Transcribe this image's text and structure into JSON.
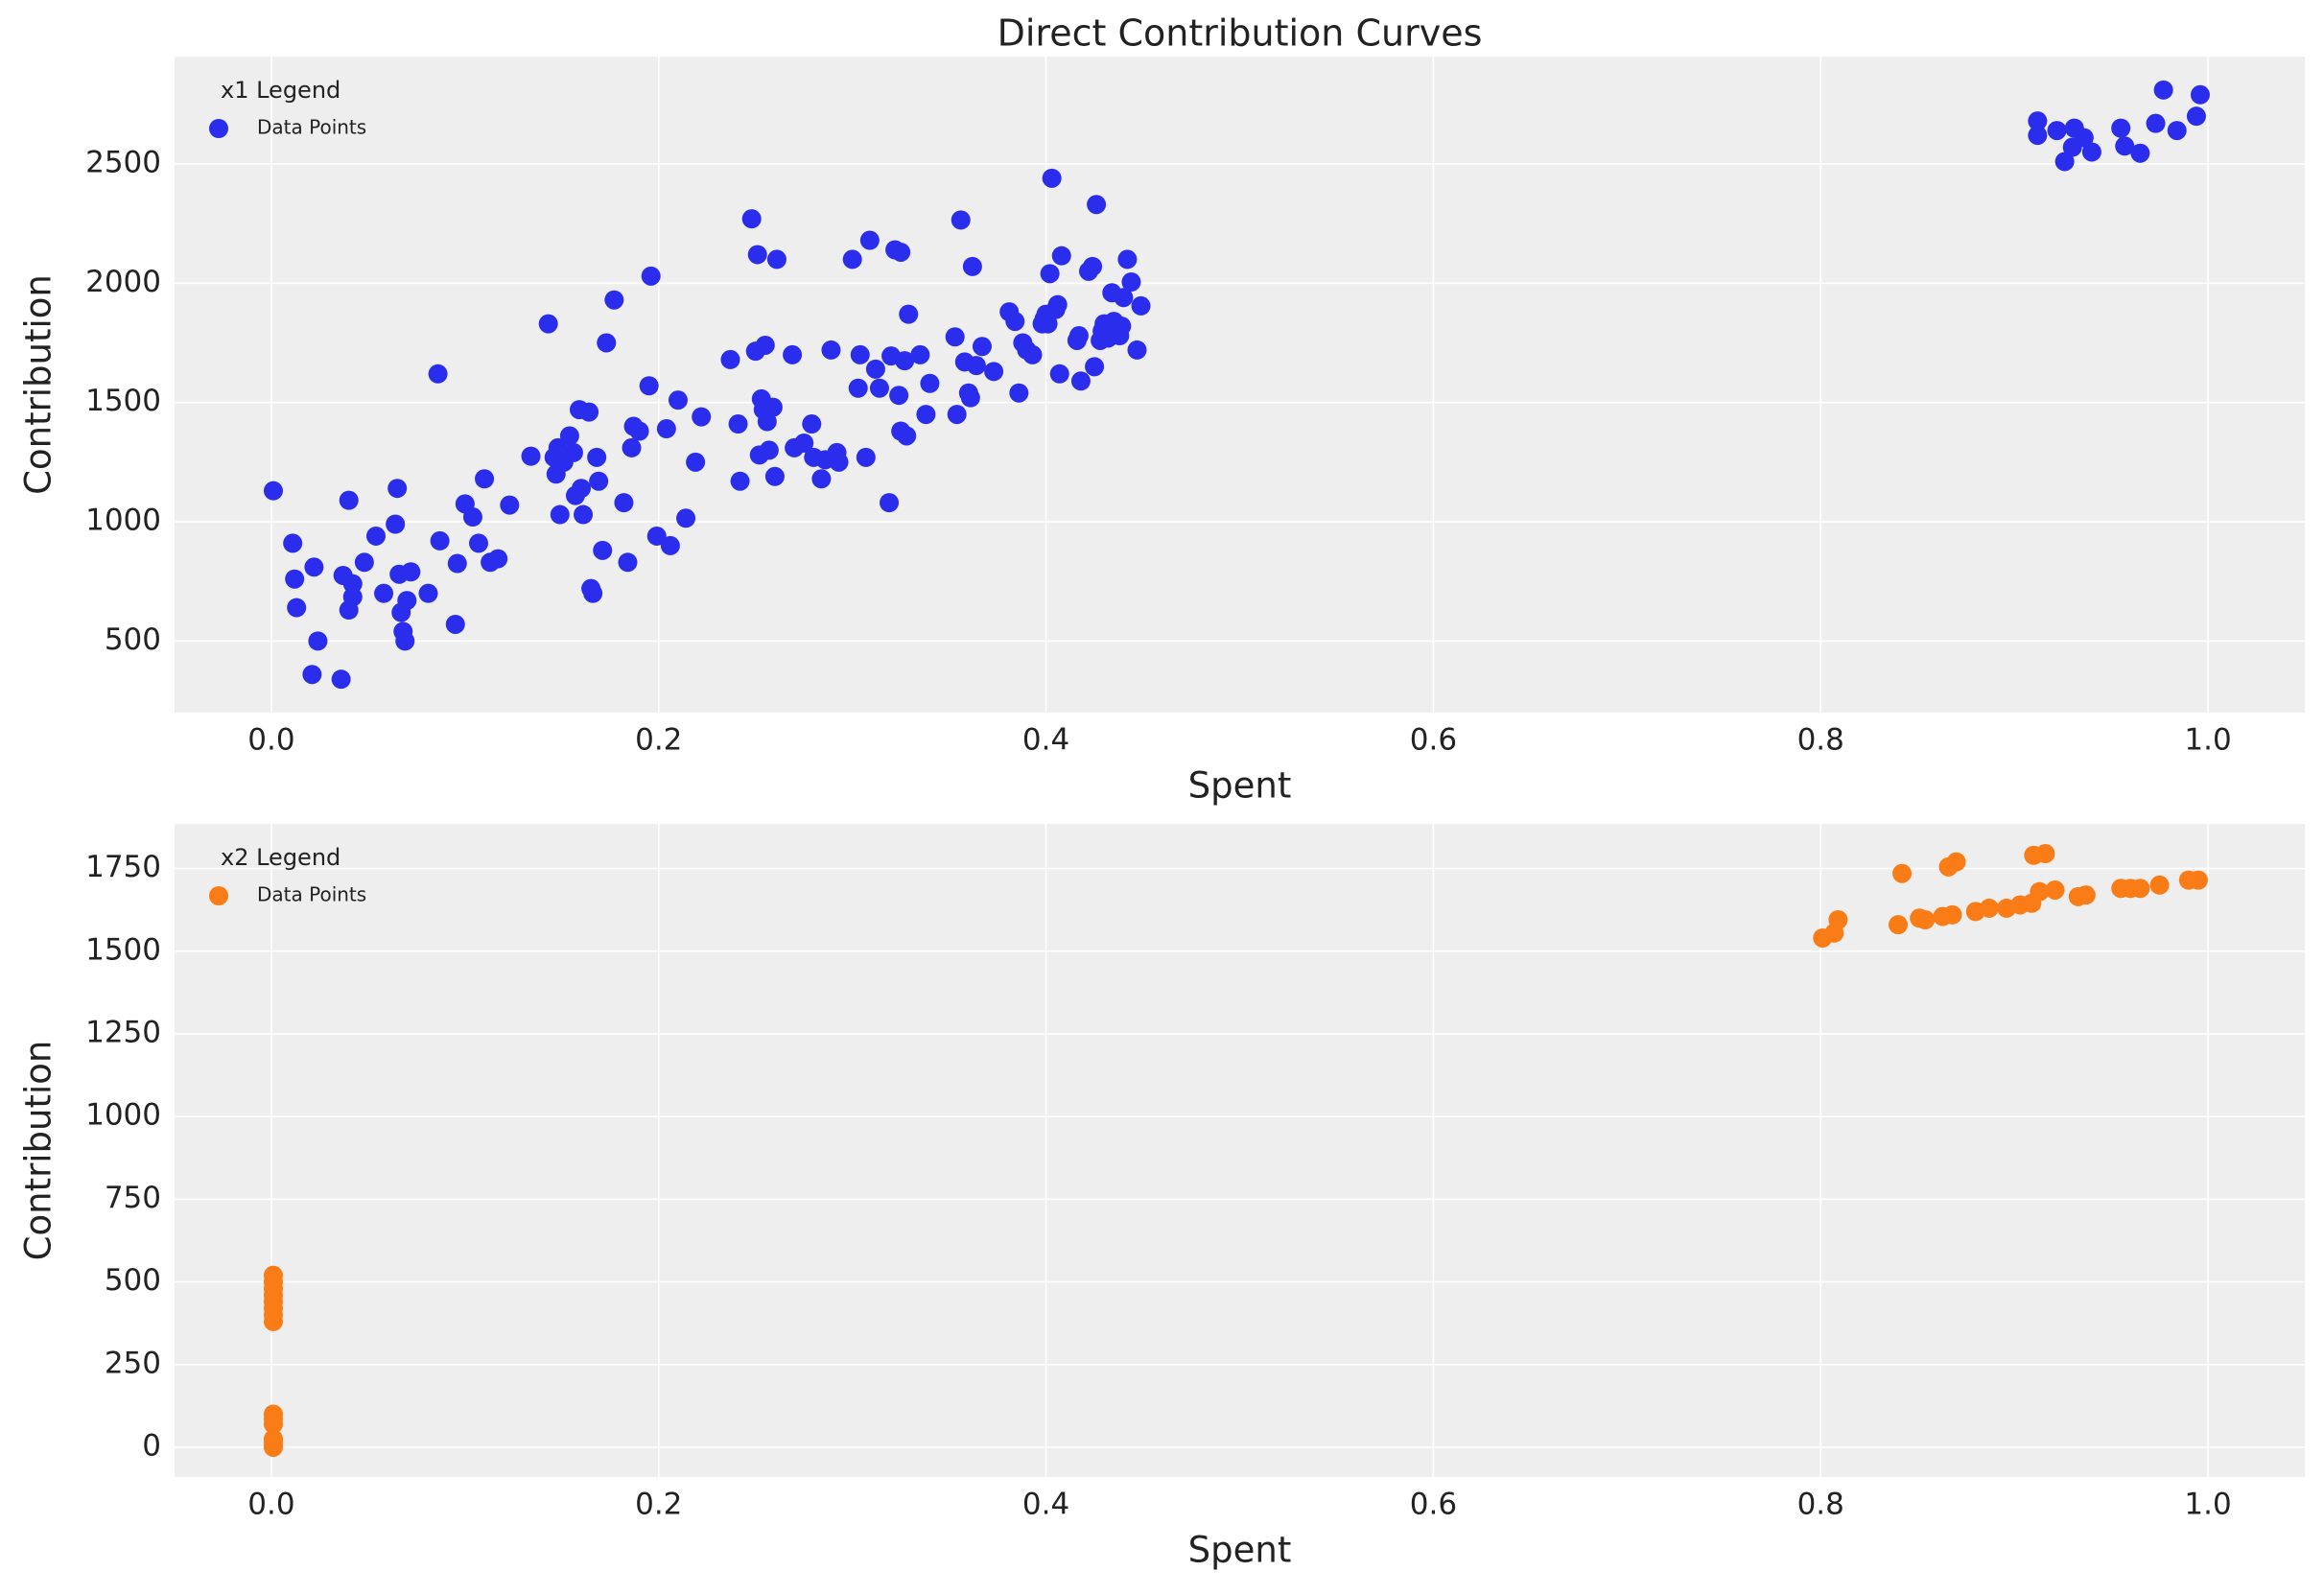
{
  "chart_data": [
    {
      "type": "scatter",
      "title": "Direct Contribution Curves",
      "x_label": "Spent",
      "y_label": "Contribution",
      "legend_title": "x1 Legend",
      "legend": "upper left",
      "grid": true,
      "xlim": [
        -0.05,
        1.05
      ],
      "ylim": [
        200,
        2950
      ],
      "xticks": [
        {
          "value": 0,
          "label": "0.0"
        },
        0.2,
        0.4,
        0.6,
        0.8,
        {
          "value": 1,
          "label": "1.0"
        }
      ],
      "yticks": [
        500,
        1000,
        1500,
        2000,
        2500
      ],
      "series": [
        {
          "name": "Data Points",
          "color": "#2a2eec",
          "x": [
            0.001,
            0.011,
            0.012,
            0.013,
            0.021,
            0.022,
            0.024,
            0.036,
            0.037,
            0.04,
            0.04,
            0.042,
            0.042,
            0.048,
            0.054,
            0.058,
            0.064,
            0.065,
            0.066,
            0.067,
            0.068,
            0.069,
            0.07,
            0.072,
            0.081,
            0.086,
            0.087,
            0.095,
            0.096,
            0.1,
            0.104,
            0.107,
            0.11,
            0.113,
            0.117,
            0.123,
            0.134,
            0.143,
            0.146,
            0.147,
            0.148,
            0.149,
            0.151,
            0.154,
            0.156,
            0.157,
            0.159,
            0.16,
            0.161,
            0.164,
            0.165,
            0.166,
            0.168,
            0.169,
            0.171,
            0.173,
            0.177,
            0.182,
            0.184,
            0.186,
            0.187,
            0.19,
            0.195,
            0.196,
            0.199,
            0.204,
            0.206,
            0.21,
            0.214,
            0.219,
            0.222,
            0.237,
            0.241,
            0.242,
            0.248,
            0.25,
            0.251,
            0.252,
            0.253,
            0.254,
            0.255,
            0.256,
            0.257,
            0.259,
            0.26,
            0.261,
            0.269,
            0.27,
            0.275,
            0.279,
            0.28,
            0.284,
            0.286,
            0.289,
            0.292,
            0.293,
            0.3,
            0.303,
            0.304,
            0.307,
            0.309,
            0.312,
            0.314,
            0.319,
            0.32,
            0.322,
            0.324,
            0.325,
            0.325,
            0.327,
            0.328,
            0.329,
            0.335,
            0.338,
            0.34,
            0.353,
            0.354,
            0.356,
            0.358,
            0.36,
            0.361,
            0.362,
            0.364,
            0.367,
            0.373,
            0.381,
            0.384,
            0.386,
            0.388,
            0.39,
            0.393,
            0.398,
            0.399,
            0.4,
            0.401,
            0.402,
            0.403,
            0.405,
            0.406,
            0.407,
            0.408,
            0.416,
            0.417,
            0.418,
            0.422,
            0.424,
            0.425,
            0.426,
            0.428,
            0.429,
            0.43,
            0.432,
            0.434,
            0.435,
            0.438,
            0.439,
            0.44,
            0.442,
            0.444,
            0.447,
            0.449,
            0.912,
            0.912,
            0.922,
            0.926,
            0.93,
            0.931,
            0.936,
            0.94,
            0.955,
            0.957,
            0.965,
            0.973,
            0.977,
            0.984,
            0.994,
            0.996
          ],
          "values": [
            1130,
            910,
            760,
            640,
            360,
            810,
            500,
            340,
            775,
            1090,
            630,
            740,
            685,
            830,
            940,
            700,
            990,
            1140,
            780,
            620,
            540,
            500,
            670,
            790,
            700,
            1620,
            920,
            570,
            825,
            1075,
            1020,
            910,
            1180,
            830,
            845,
            1070,
            1275,
            1830,
            1270,
            1200,
            1310,
            1030,
            1250,
            1360,
            1290,
            1110,
            1470,
            1140,
            1030,
            1460,
            720,
            700,
            1270,
            1170,
            880,
            1750,
            1930,
            1080,
            830,
            1310,
            1400,
            1380,
            1570,
            2030,
            940,
            1390,
            900,
            1510,
            1015,
            1250,
            1440,
            1680,
            1410,
            1170,
            2270,
            1715,
            2120,
            1280,
            1515,
            1470,
            1740,
            1420,
            1300,
            1480,
            1190,
            2100,
            1700,
            1310,
            1330,
            1410,
            1270,
            1180,
            1260,
            1720,
            1290,
            1250,
            2100,
            1560,
            1700,
            1270,
            2180,
            1640,
            1560,
            1080,
            1695,
            2140,
            1530,
            2130,
            1380,
            1675,
            1360,
            1870,
            1700,
            1450,
            1580,
            1775,
            1450,
            2265,
            1670,
            1540,
            1520,
            2070,
            1655,
            1735,
            1630,
            1880,
            1840,
            1540,
            1750,
            1720,
            1700,
            1830,
            1850,
            1870,
            1830,
            2040,
            2440,
            1890,
            1910,
            1620,
            2115,
            1760,
            1780,
            1590,
            2050,
            2070,
            1650,
            2330,
            1760,
            1800,
            1830,
            1770,
            1960,
            1840,
            1780,
            1820,
            1940,
            2100,
            2005,
            1720,
            1905,
            2680,
            2620,
            2640,
            2510,
            2570,
            2650,
            2610,
            2550,
            2650,
            2575,
            2545,
            2670,
            2810,
            2640,
            2700,
            2790
          ]
        }
      ]
    },
    {
      "type": "scatter",
      "x_label": "Spent",
      "y_label": "Contribution",
      "legend_title": "x2 Legend",
      "legend": "upper left",
      "grid": true,
      "xlim": [
        -0.05,
        1.05
      ],
      "ylim": [
        -90,
        1885
      ],
      "xticks": [
        {
          "value": 0,
          "label": "0.0"
        },
        0.2,
        0.4,
        0.6,
        0.8,
        {
          "value": 1,
          "label": "1.0"
        }
      ],
      "yticks": [
        0,
        250,
        500,
        750,
        1000,
        1250,
        1500,
        1750
      ],
      "series": [
        {
          "name": "Data Points",
          "color": "#fa7c17",
          "x": [
            0.001,
            0.001,
            0.001,
            0.001,
            0.001,
            0.001,
            0.001,
            0.001,
            0.001,
            0.001,
            0.001,
            0.001,
            0.001,
            0.001,
            0.001,
            0.801,
            0.807,
            0.809,
            0.84,
            0.842,
            0.851,
            0.854,
            0.863,
            0.866,
            0.868,
            0.87,
            0.88,
            0.887,
            0.896,
            0.903,
            0.909,
            0.91,
            0.913,
            0.916,
            0.921,
            0.933,
            0.937,
            0.955,
            0.96,
            0.965,
            0.975,
            0.99,
            0.995
          ],
          "values": [
            0,
            10,
            20,
            25,
            70,
            85,
            100,
            380,
            400,
            420,
            440,
            460,
            480,
            500,
            520,
            1540,
            1555,
            1595,
            1580,
            1735,
            1600,
            1595,
            1605,
            1755,
            1610,
            1770,
            1620,
            1630,
            1630,
            1640,
            1645,
            1790,
            1680,
            1795,
            1685,
            1665,
            1670,
            1690,
            1690,
            1690,
            1700,
            1715,
            1715
          ]
        }
      ]
    }
  ]
}
